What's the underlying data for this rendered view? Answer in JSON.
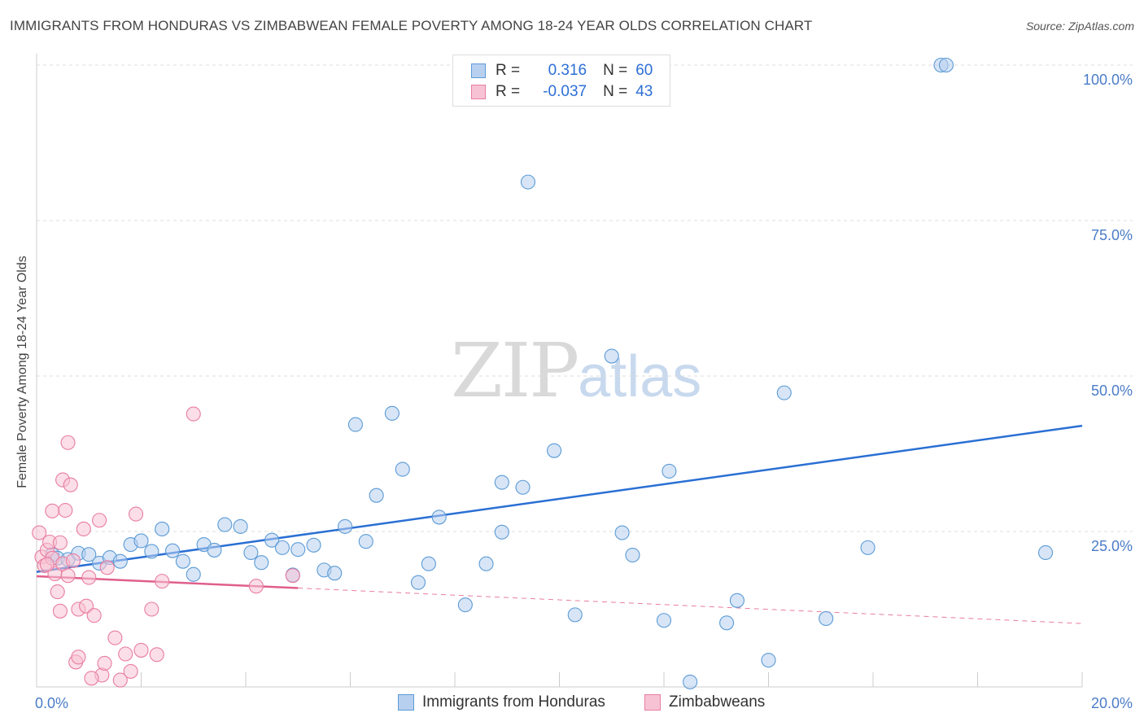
{
  "title": "IMMIGRANTS FROM HONDURAS VS ZIMBABWEAN FEMALE POVERTY AMONG 18-24 YEAR OLDS CORRELATION CHART",
  "source": "Source: ZipAtlas.com",
  "watermark": {
    "zip": "ZIP",
    "atlas": "atlas"
  },
  "legend_stats": [
    {
      "r_label": "R =",
      "r_value": "0.316",
      "n_label": "N =",
      "n_value": "60",
      "color": "#5b9bd5"
    },
    {
      "r_label": "R =",
      "r_value": "-0.037",
      "n_label": "N =",
      "n_value": "43",
      "color": "#e87da0"
    }
  ],
  "chart_data": {
    "type": "scatter",
    "title": "IMMIGRANTS FROM HONDURAS VS ZIMBABWEAN FEMALE POVERTY AMONG 18-24 YEAR OLDS CORRELATION CHART",
    "xlabel": "",
    "ylabel": "Female Poverty Among 18-24 Year Olds",
    "xlim": [
      0,
      20
    ],
    "ylim": [
      0,
      100
    ],
    "x_tick_labels": [
      "0.0%",
      "20.0%"
    ],
    "y_ticks": [
      25,
      50,
      75,
      100
    ],
    "y_tick_labels": [
      "25.0%",
      "50.0%",
      "75.0%",
      "100.0%"
    ],
    "grid": true,
    "series": [
      {
        "name": "Immigrants from Honduras",
        "color": "#5b9bd5",
        "fill": "#b8d0f0",
        "trend": {
          "x": [
            0,
            20
          ],
          "y": [
            18.5,
            42.0
          ],
          "dashed_from": null
        },
        "points": [
          [
            0.3,
            21.3
          ],
          [
            0.4,
            20.7
          ],
          [
            0.6,
            20.5
          ],
          [
            0.8,
            21.5
          ],
          [
            1.0,
            21.3
          ],
          [
            1.2,
            19.9
          ],
          [
            1.4,
            20.8
          ],
          [
            1.6,
            20.2
          ],
          [
            1.8,
            22.9
          ],
          [
            2.0,
            23.5
          ],
          [
            2.2,
            21.8
          ],
          [
            2.4,
            25.4
          ],
          [
            2.6,
            21.9
          ],
          [
            2.8,
            20.2
          ],
          [
            3.0,
            18.1
          ],
          [
            3.2,
            22.9
          ],
          [
            3.4,
            22.0
          ],
          [
            3.6,
            26.1
          ],
          [
            3.9,
            25.8
          ],
          [
            4.1,
            21.6
          ],
          [
            4.3,
            20.0
          ],
          [
            4.5,
            23.6
          ],
          [
            4.7,
            22.4
          ],
          [
            4.9,
            18.0
          ],
          [
            5.0,
            22.1
          ],
          [
            5.3,
            22.8
          ],
          [
            5.5,
            18.8
          ],
          [
            5.7,
            18.3
          ],
          [
            5.9,
            25.8
          ],
          [
            6.1,
            42.2
          ],
          [
            6.3,
            23.4
          ],
          [
            6.5,
            30.8
          ],
          [
            6.8,
            44.0
          ],
          [
            7.0,
            35.0
          ],
          [
            7.3,
            16.8
          ],
          [
            7.5,
            19.8
          ],
          [
            7.7,
            27.3
          ],
          [
            8.2,
            13.2
          ],
          [
            8.6,
            19.8
          ],
          [
            8.9,
            24.9
          ],
          [
            8.9,
            32.9
          ],
          [
            9.3,
            32.1
          ],
          [
            9.4,
            81.2
          ],
          [
            9.9,
            38.0
          ],
          [
            10.3,
            11.6
          ],
          [
            11.0,
            53.2
          ],
          [
            11.2,
            24.8
          ],
          [
            11.4,
            21.2
          ],
          [
            12.1,
            34.7
          ],
          [
            12.0,
            10.7
          ],
          [
            12.5,
            0.8
          ],
          [
            13.2,
            10.3
          ],
          [
            13.4,
            13.9
          ],
          [
            14.0,
            4.3
          ],
          [
            14.3,
            47.3
          ],
          [
            15.1,
            11.0
          ],
          [
            15.9,
            22.4
          ],
          [
            17.3,
            100.0
          ],
          [
            17.4,
            100.0
          ],
          [
            19.3,
            21.6
          ]
        ]
      },
      {
        "name": "Zimbabweans",
        "color": "#e87da0",
        "fill": "#f7c3d4",
        "trend": {
          "x": [
            0,
            20
          ],
          "y": [
            17.8,
            10.2
          ],
          "dashed_from": 5.0
        },
        "points": [
          [
            0.05,
            24.8
          ],
          [
            0.1,
            20.9
          ],
          [
            0.15,
            19.5
          ],
          [
            0.2,
            22.0
          ],
          [
            0.25,
            23.3
          ],
          [
            0.3,
            20.7
          ],
          [
            0.35,
            18.2
          ],
          [
            0.4,
            15.3
          ],
          [
            0.45,
            12.2
          ],
          [
            0.5,
            19.8
          ],
          [
            0.3,
            28.3
          ],
          [
            0.5,
            33.3
          ],
          [
            0.55,
            28.4
          ],
          [
            0.6,
            39.3
          ],
          [
            0.65,
            32.5
          ],
          [
            0.7,
            20.3
          ],
          [
            0.75,
            4.0
          ],
          [
            0.8,
            12.5
          ],
          [
            0.9,
            25.4
          ],
          [
            0.95,
            13.0
          ],
          [
            1.0,
            17.6
          ],
          [
            1.1,
            11.5
          ],
          [
            1.2,
            26.8
          ],
          [
            1.25,
            1.9
          ],
          [
            1.3,
            3.8
          ],
          [
            1.35,
            19.2
          ],
          [
            1.5,
            7.9
          ],
          [
            1.6,
            1.1
          ],
          [
            1.7,
            5.3
          ],
          [
            1.8,
            2.5
          ],
          [
            1.9,
            27.8
          ],
          [
            2.0,
            5.9
          ],
          [
            2.2,
            12.5
          ],
          [
            2.3,
            5.2
          ],
          [
            2.4,
            17.0
          ],
          [
            3.0,
            43.9
          ],
          [
            4.2,
            16.2
          ],
          [
            4.9,
            17.9
          ],
          [
            0.8,
            4.8
          ],
          [
            1.05,
            1.4
          ],
          [
            0.45,
            23.2
          ],
          [
            0.6,
            17.9
          ],
          [
            0.2,
            19.7
          ]
        ]
      }
    ]
  }
}
